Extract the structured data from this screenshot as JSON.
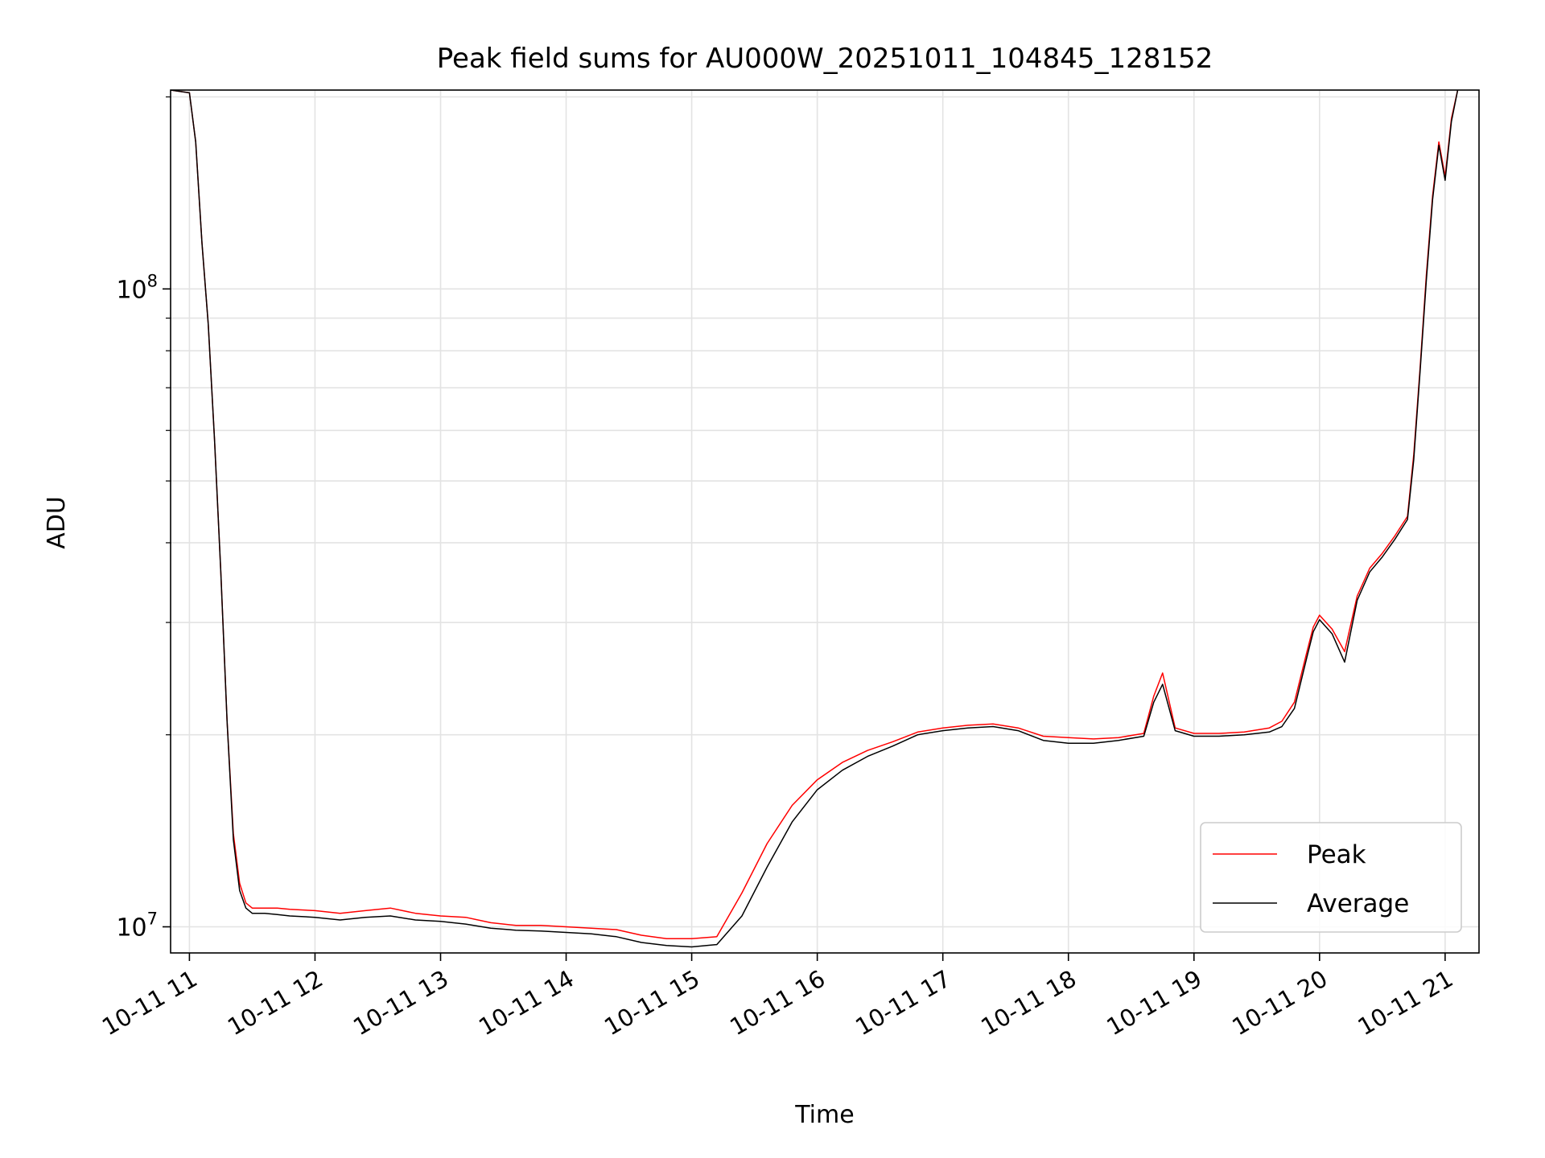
{
  "chart_data": {
    "type": "line",
    "title": "Peak field sums for AU000W_20251011_104845_128152",
    "xlabel": "Time",
    "ylabel": "ADU",
    "yscale": "log",
    "ylim": [
      9100000,
      205000000
    ],
    "xlim_hours": [
      10.85,
      21.27
    ],
    "grid": true,
    "legend_position": "lower-right",
    "x_ticks": [
      {
        "hour": 11,
        "label": "10-11 11"
      },
      {
        "hour": 12,
        "label": "10-11 12"
      },
      {
        "hour": 13,
        "label": "10-11 13"
      },
      {
        "hour": 14,
        "label": "10-11 14"
      },
      {
        "hour": 15,
        "label": "10-11 15"
      },
      {
        "hour": 16,
        "label": "10-11 16"
      },
      {
        "hour": 17,
        "label": "10-11 17"
      },
      {
        "hour": 18,
        "label": "10-11 18"
      },
      {
        "hour": 19,
        "label": "10-11 19"
      },
      {
        "hour": 20,
        "label": "10-11 20"
      },
      {
        "hour": 21,
        "label": "10-11 21"
      }
    ],
    "y_ticks": [
      {
        "value": 10000000,
        "base": "10",
        "exp": "7"
      },
      {
        "value": 100000000,
        "base": "10",
        "exp": "8"
      }
    ],
    "y_minor_ticks": [
      20000000,
      30000000,
      40000000,
      50000000,
      60000000,
      70000000,
      80000000,
      90000000,
      200000000
    ],
    "series": [
      {
        "name": "Peak",
        "color": "#ff0000",
        "x_hours": [
          10.85,
          11.0,
          11.05,
          11.1,
          11.15,
          11.2,
          11.25,
          11.3,
          11.35,
          11.4,
          11.45,
          11.5,
          11.6,
          11.7,
          11.8,
          12.0,
          12.2,
          12.4,
          12.6,
          12.8,
          13.0,
          13.2,
          13.4,
          13.6,
          13.8,
          14.0,
          14.2,
          14.4,
          14.6,
          14.8,
          15.0,
          15.2,
          15.4,
          15.6,
          15.8,
          16.0,
          16.2,
          16.4,
          16.6,
          16.8,
          17.0,
          17.2,
          17.4,
          17.6,
          17.8,
          18.0,
          18.2,
          18.4,
          18.6,
          18.68,
          18.75,
          18.85,
          19.0,
          19.2,
          19.4,
          19.6,
          19.7,
          19.8,
          19.9,
          19.95,
          20.0,
          20.1,
          20.2,
          20.3,
          20.4,
          20.5,
          20.6,
          20.7,
          20.75,
          20.8,
          20.85,
          20.9,
          20.95,
          21.0,
          21.05,
          21.1
        ],
        "values": [
          205000000,
          203000000,
          170000000,
          118000000,
          88000000,
          58000000,
          36000000,
          21000000,
          14000000,
          11700000,
          10900000,
          10700000,
          10700000,
          10700000,
          10650000,
          10600000,
          10500000,
          10600000,
          10700000,
          10500000,
          10400000,
          10350000,
          10150000,
          10050000,
          10050000,
          10000000,
          9950000,
          9900000,
          9700000,
          9580000,
          9580000,
          9650000,
          11300000,
          13500000,
          15500000,
          17000000,
          18100000,
          18900000,
          19500000,
          20200000,
          20500000,
          20700000,
          20800000,
          20500000,
          19900000,
          19800000,
          19700000,
          19800000,
          20100000,
          23000000,
          25000000,
          20500000,
          20100000,
          20100000,
          20200000,
          20500000,
          21000000,
          22500000,
          27000000,
          29500000,
          30800000,
          29300000,
          27000000,
          33000000,
          36500000,
          38500000,
          41000000,
          44000000,
          55000000,
          75000000,
          105000000,
          140000000,
          170000000,
          150000000,
          185000000,
          205000000
        ]
      },
      {
        "name": "Average",
        "color": "#000000",
        "x_hours": [
          10.85,
          11.0,
          11.05,
          11.1,
          11.15,
          11.2,
          11.25,
          11.3,
          11.35,
          11.4,
          11.45,
          11.5,
          11.6,
          11.7,
          11.8,
          12.0,
          12.2,
          12.4,
          12.6,
          12.8,
          13.0,
          13.2,
          13.4,
          13.6,
          13.8,
          14.0,
          14.2,
          14.4,
          14.6,
          14.8,
          15.0,
          15.2,
          15.4,
          15.6,
          15.8,
          16.0,
          16.2,
          16.4,
          16.6,
          16.8,
          17.0,
          17.2,
          17.4,
          17.6,
          17.8,
          18.0,
          18.2,
          18.4,
          18.6,
          18.68,
          18.75,
          18.85,
          19.0,
          19.2,
          19.4,
          19.6,
          19.7,
          19.8,
          19.9,
          19.95,
          20.0,
          20.1,
          20.2,
          20.3,
          20.4,
          20.5,
          20.6,
          20.7,
          20.75,
          20.8,
          20.85,
          20.9,
          20.95,
          21.0,
          21.05,
          21.1
        ],
        "values": [
          205000000,
          203000000,
          170000000,
          118000000,
          88000000,
          58000000,
          36000000,
          21000000,
          13700000,
          11400000,
          10700000,
          10500000,
          10500000,
          10450000,
          10400000,
          10350000,
          10250000,
          10350000,
          10400000,
          10250000,
          10200000,
          10100000,
          9950000,
          9880000,
          9850000,
          9800000,
          9750000,
          9650000,
          9450000,
          9350000,
          9300000,
          9380000,
          10400000,
          12400000,
          14600000,
          16400000,
          17600000,
          18500000,
          19200000,
          20000000,
          20300000,
          20500000,
          20600000,
          20300000,
          19600000,
          19400000,
          19400000,
          19600000,
          19900000,
          22500000,
          24000000,
          20300000,
          19900000,
          19900000,
          20000000,
          20200000,
          20600000,
          22000000,
          26500000,
          29000000,
          30300000,
          28800000,
          26000000,
          32500000,
          36000000,
          38000000,
          40500000,
          43500000,
          54000000,
          74000000,
          103000000,
          138000000,
          168000000,
          148000000,
          183000000,
          205000000
        ]
      }
    ]
  }
}
